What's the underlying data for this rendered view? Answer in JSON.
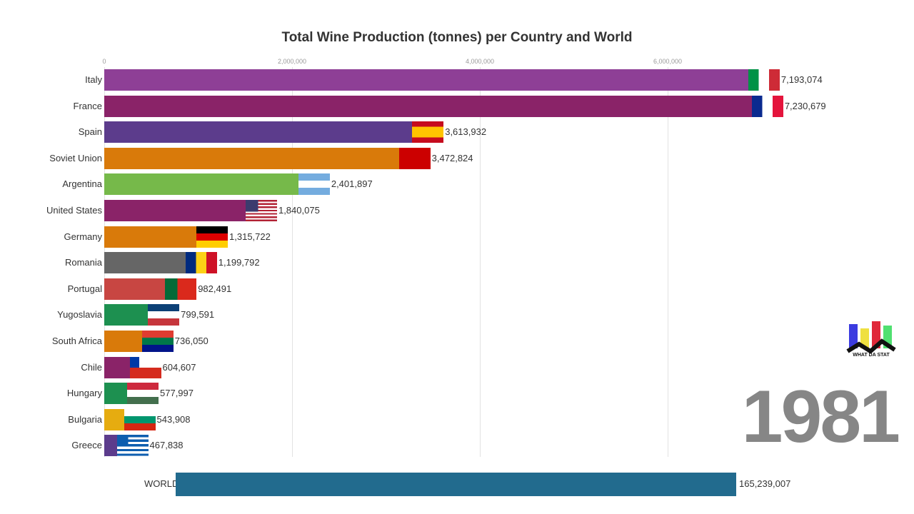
{
  "chart_data": {
    "type": "bar",
    "title": "Total Wine Production (tonnes) per Country and World",
    "xlim": [
      0,
      7500000
    ],
    "ticks": [
      {
        "value": 0,
        "label": "0"
      },
      {
        "value": 2000000,
        "label": "2,000,000"
      },
      {
        "value": 4000000,
        "label": "4,000,000"
      },
      {
        "value": 6000000,
        "label": "6,000,000"
      }
    ],
    "grid": true,
    "categories": [
      "Italy",
      "France",
      "Spain",
      "Soviet Union",
      "Argentina",
      "United States",
      "Germany",
      "Romania",
      "Portugal",
      "Yugoslavia",
      "South Africa",
      "Chile",
      "Hungary",
      "Bulgaria",
      "Greece"
    ],
    "values": [
      7193074,
      7230679,
      3613932,
      3472824,
      2401897,
      1840075,
      1315722,
      1199792,
      982491,
      799591,
      736050,
      604607,
      577997,
      543908,
      467838
    ],
    "value_labels": [
      "7,193,074",
      "7,230,679",
      "3,613,932",
      "3,472,824",
      "2,401,897",
      "1,840,075",
      "1,315,722",
      "1,199,792",
      "982,491",
      "799,591",
      "736,050",
      "604,607",
      "577,997",
      "543,908",
      "467,838"
    ],
    "colors": [
      "#8e3f96",
      "#8a2368",
      "#5c3c8c",
      "#d97a0a",
      "#76b94a",
      "#8a2368",
      "#d97a0a",
      "#666666",
      "#c84642",
      "#1d9050",
      "#d97a0a",
      "#8a2368",
      "#1d9050",
      "#e6ac10",
      "#5c3c8c"
    ],
    "world": {
      "label": "WORLD",
      "value": 165239007,
      "value_label": "165,239,007"
    },
    "year": "1981"
  },
  "logo": {
    "text": "WHAT DA STAT"
  }
}
